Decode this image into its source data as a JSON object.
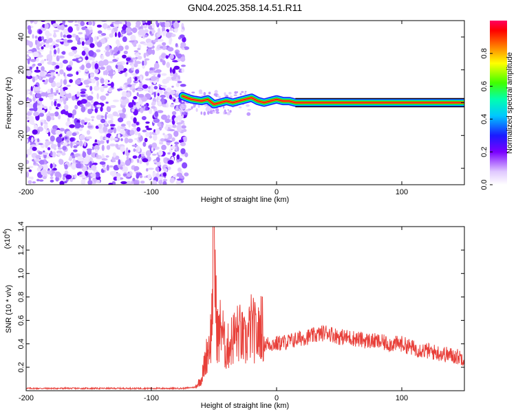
{
  "title": "GN04.2025.358.14.51.R11",
  "chart_data": [
    {
      "type": "heatmap",
      "xlabel": "Height of straight line (km)",
      "ylabel": "Frequency (Hz)",
      "xlim": [
        -200,
        150
      ],
      "ylim": [
        -50,
        50
      ],
      "x_ticks": [
        -200,
        -100,
        0,
        100
      ],
      "y_ticks": [
        -40,
        -20,
        0,
        20,
        40
      ],
      "colorbar": {
        "label": "Normalized spectral amplitude",
        "range": [
          0,
          1
        ],
        "ticks": [
          "0.0",
          "0.2",
          "0.4",
          "0.6",
          "0.8"
        ]
      },
      "noise_region_x": [
        -200,
        -72
      ],
      "ridge_profile": [
        {
          "x": -75,
          "y": 4
        },
        {
          "x": -68,
          "y": 2
        },
        {
          "x": -60,
          "y": 1
        },
        {
          "x": -55,
          "y": 2
        },
        {
          "x": -50,
          "y": -1
        },
        {
          "x": -45,
          "y": 0
        },
        {
          "x": -40,
          "y": 1
        },
        {
          "x": -35,
          "y": 0
        },
        {
          "x": -30,
          "y": 1
        },
        {
          "x": -25,
          "y": 2
        },
        {
          "x": -20,
          "y": 3
        },
        {
          "x": -15,
          "y": 1
        },
        {
          "x": -10,
          "y": 0
        },
        {
          "x": -5,
          "y": 1
        },
        {
          "x": 0,
          "y": 2
        },
        {
          "x": 5,
          "y": 1
        },
        {
          "x": 10,
          "y": 1
        },
        {
          "x": 15,
          "y": 0
        },
        {
          "x": 150,
          "y": 0
        }
      ],
      "grid": false
    },
    {
      "type": "line",
      "xlabel": "Height of straight line (km)",
      "ylabel": "SNR (10 * v/v)",
      "y_multiplier": "(x10^4)",
      "xlim": [
        -200,
        150
      ],
      "ylim": [
        0,
        1.4
      ],
      "x_ticks": [
        -200,
        -100,
        0,
        100
      ],
      "y_ticks": [
        "0.2",
        "0.4",
        "0.6",
        "0.8",
        "1.0",
        "1.2",
        "1.4"
      ],
      "line_color": "#e8403a",
      "series": [
        {
          "x": [
            -200,
            -150,
            -100,
            -75,
            -65,
            -60,
            -57,
            -55,
            -52,
            -50,
            -48,
            -46,
            -44,
            -42,
            -40,
            -35,
            -30,
            -25,
            -20,
            -15,
            -12,
            -10,
            -5,
            0,
            10,
            20,
            30,
            40,
            45,
            50,
            60,
            70,
            80,
            90,
            100,
            110,
            120,
            130,
            140,
            150
          ],
          "values": [
            0.02,
            0.02,
            0.02,
            0.02,
            0.03,
            0.1,
            0.25,
            0.35,
            0.5,
            1.4,
            0.55,
            0.45,
            0.6,
            0.4,
            0.35,
            0.45,
            0.5,
            0.4,
            0.55,
            0.45,
            0.6,
            0.4,
            0.4,
            0.4,
            0.42,
            0.45,
            0.47,
            0.5,
            0.48,
            0.46,
            0.45,
            0.43,
            0.42,
            0.4,
            0.4,
            0.36,
            0.34,
            0.32,
            0.3,
            0.28
          ]
        }
      ],
      "grid": false
    }
  ]
}
